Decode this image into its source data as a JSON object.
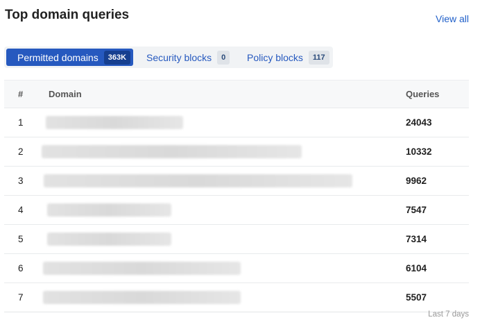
{
  "header": {
    "title": "Top domain queries",
    "view_all": "View all"
  },
  "tabs": [
    {
      "label": "Permitted domains",
      "count": "363K",
      "active": true
    },
    {
      "label": "Security blocks",
      "count": "0",
      "active": false
    },
    {
      "label": "Policy blocks",
      "count": "117",
      "active": false
    }
  ],
  "table": {
    "columns": [
      "#",
      "Domain",
      "Queries"
    ],
    "rows": [
      {
        "rank": "1",
        "domain": "[redacted]",
        "queries": "24043"
      },
      {
        "rank": "2",
        "domain": "[redacted]",
        "queries": "10332"
      },
      {
        "rank": "3",
        "domain": "[redacted]",
        "queries": "9962"
      },
      {
        "rank": "4",
        "domain": "[redacted]",
        "queries": "7547"
      },
      {
        "rank": "5",
        "domain": "[redacted]",
        "queries": "7314"
      },
      {
        "rank": "6",
        "domain": "[redacted]",
        "queries": "6104"
      },
      {
        "rank": "7",
        "domain": "[redacted]",
        "queries": "5507"
      }
    ]
  },
  "footer": {
    "period": "Last 7 days"
  },
  "colors": {
    "accent": "#2659bf",
    "active_badge": "#163f8f"
  }
}
